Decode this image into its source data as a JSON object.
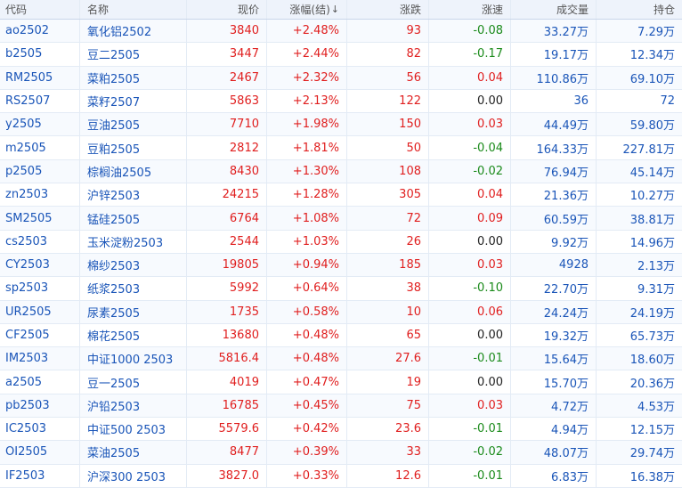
{
  "header": {
    "code": "代码",
    "name": "名称",
    "price": "现价",
    "pct": "涨幅(结)",
    "pct_sort": "↓",
    "change": "涨跌",
    "speed": "涨速",
    "volume": "成交量",
    "open_interest": "持仓"
  },
  "colors": {
    "up": "#e01e1e",
    "down": "#1a8a1a",
    "link": "#1a55b8"
  },
  "rows": [
    {
      "code": "ao2502",
      "name": "氧化铝2502",
      "price": "3840",
      "pct": "+2.48%",
      "change": "93",
      "speed": "-0.08",
      "volume": "33.27万",
      "oi": "7.29万"
    },
    {
      "code": "b2505",
      "name": "豆二2505",
      "price": "3447",
      "pct": "+2.44%",
      "change": "82",
      "speed": "-0.17",
      "volume": "19.17万",
      "oi": "12.34万"
    },
    {
      "code": "RM2505",
      "name": "菜粕2505",
      "price": "2467",
      "pct": "+2.32%",
      "change": "56",
      "speed": "0.04",
      "volume": "110.86万",
      "oi": "69.10万"
    },
    {
      "code": "RS2507",
      "name": "菜籽2507",
      "price": "5863",
      "pct": "+2.13%",
      "change": "122",
      "speed": "0.00",
      "volume": "36",
      "oi": "72"
    },
    {
      "code": "y2505",
      "name": "豆油2505",
      "price": "7710",
      "pct": "+1.98%",
      "change": "150",
      "speed": "0.03",
      "volume": "44.49万",
      "oi": "59.80万"
    },
    {
      "code": "m2505",
      "name": "豆粕2505",
      "price": "2812",
      "pct": "+1.81%",
      "change": "50",
      "speed": "-0.04",
      "volume": "164.33万",
      "oi": "227.81万"
    },
    {
      "code": "p2505",
      "name": "棕榈油2505",
      "price": "8430",
      "pct": "+1.30%",
      "change": "108",
      "speed": "-0.02",
      "volume": "76.94万",
      "oi": "45.14万"
    },
    {
      "code": "zn2503",
      "name": "沪锌2503",
      "price": "24215",
      "pct": "+1.28%",
      "change": "305",
      "speed": "0.04",
      "volume": "21.36万",
      "oi": "10.27万"
    },
    {
      "code": "SM2505",
      "name": "锰硅2505",
      "price": "6764",
      "pct": "+1.08%",
      "change": "72",
      "speed": "0.09",
      "volume": "60.59万",
      "oi": "38.81万"
    },
    {
      "code": "cs2503",
      "name": "玉米淀粉2503",
      "price": "2544",
      "pct": "+1.03%",
      "change": "26",
      "speed": "0.00",
      "volume": "9.92万",
      "oi": "14.96万"
    },
    {
      "code": "CY2503",
      "name": "棉纱2503",
      "price": "19805",
      "pct": "+0.94%",
      "change": "185",
      "speed": "0.03",
      "volume": "4928",
      "oi": "2.13万"
    },
    {
      "code": "sp2503",
      "name": "纸浆2503",
      "price": "5992",
      "pct": "+0.64%",
      "change": "38",
      "speed": "-0.10",
      "volume": "22.70万",
      "oi": "9.31万"
    },
    {
      "code": "UR2505",
      "name": "尿素2505",
      "price": "1735",
      "pct": "+0.58%",
      "change": "10",
      "speed": "0.06",
      "volume": "24.24万",
      "oi": "24.19万"
    },
    {
      "code": "CF2505",
      "name": "棉花2505",
      "price": "13680",
      "pct": "+0.48%",
      "change": "65",
      "speed": "0.00",
      "volume": "19.32万",
      "oi": "65.73万"
    },
    {
      "code": "IM2503",
      "name": "中证1000 2503",
      "price": "5816.4",
      "pct": "+0.48%",
      "change": "27.6",
      "speed": "-0.01",
      "volume": "15.64万",
      "oi": "18.60万"
    },
    {
      "code": "a2505",
      "name": "豆一2505",
      "price": "4019",
      "pct": "+0.47%",
      "change": "19",
      "speed": "0.00",
      "volume": "15.70万",
      "oi": "20.36万"
    },
    {
      "code": "pb2503",
      "name": "沪铅2503",
      "price": "16785",
      "pct": "+0.45%",
      "change": "75",
      "speed": "0.03",
      "volume": "4.72万",
      "oi": "4.53万"
    },
    {
      "code": "IC2503",
      "name": "中证500 2503",
      "price": "5579.6",
      "pct": "+0.42%",
      "change": "23.6",
      "speed": "-0.01",
      "volume": "4.94万",
      "oi": "12.15万"
    },
    {
      "code": "OI2505",
      "name": "菜油2505",
      "price": "8477",
      "pct": "+0.39%",
      "change": "33",
      "speed": "-0.02",
      "volume": "48.07万",
      "oi": "29.74万"
    },
    {
      "code": "IF2503",
      "name": "沪深300 2503",
      "price": "3827.0",
      "pct": "+0.33%",
      "change": "12.6",
      "speed": "-0.01",
      "volume": "6.83万",
      "oi": "16.38万"
    }
  ]
}
